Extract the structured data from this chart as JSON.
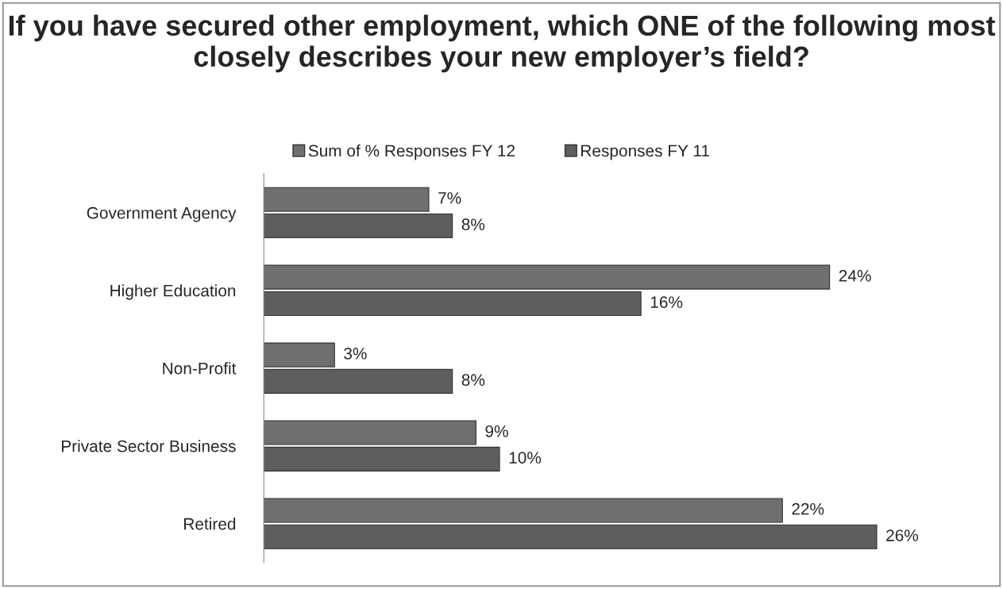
{
  "chart_data": {
    "type": "bar",
    "orientation": "horizontal",
    "title": "If you have secured other employment, which ONE of the following most closely describes your new employer’s field?",
    "categories": [
      "Government Agency",
      "Higher Education",
      "Non-Profit",
      "Private Sector Business",
      "Retired"
    ],
    "series": [
      {
        "name": "Sum of % Responses FY 12",
        "color": "#6f6f6f",
        "values": [
          7,
          24,
          3,
          9,
          22
        ],
        "value_labels": [
          "7%",
          "24%",
          "3%",
          "9%",
          "22%"
        ]
      },
      {
        "name": "Responses FY 11",
        "color": "#5e5e5e",
        "values": [
          8,
          16,
          8,
          10,
          26
        ],
        "value_labels": [
          "8%",
          "16%",
          "8%",
          "10%",
          "26%"
        ]
      }
    ],
    "legend": "top",
    "grid": false
  }
}
